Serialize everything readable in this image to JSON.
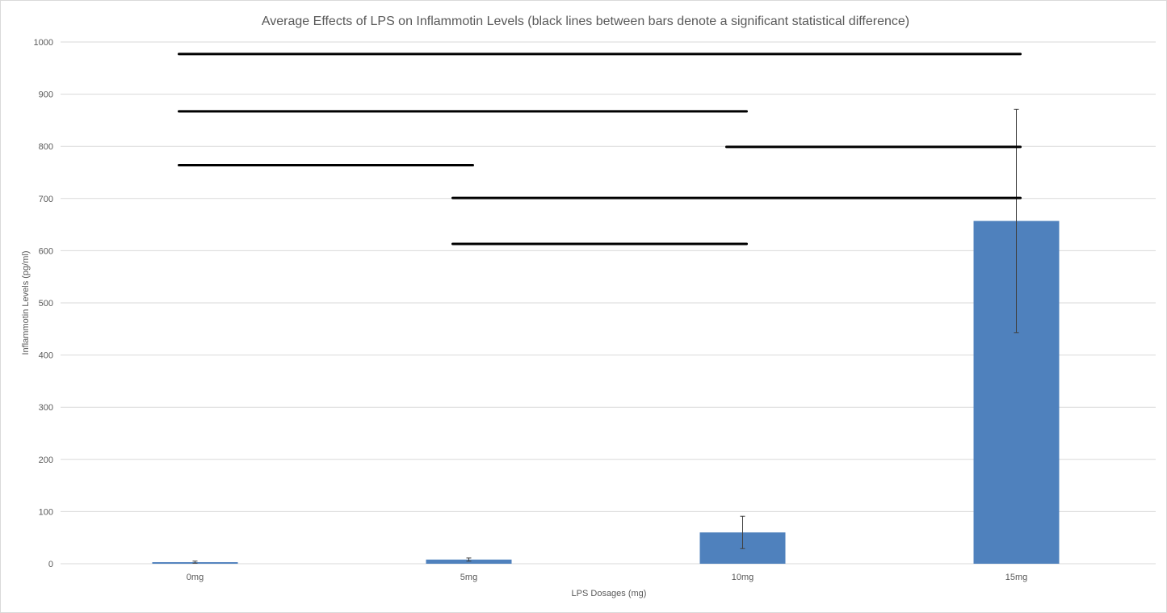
{
  "chart_data": {
    "type": "bar",
    "title": "Average Effects of LPS on Inflammotin Levels (black lines between bars denote a significant statistical difference)",
    "xlabel": "LPS Dosages (mg)",
    "ylabel": "Inflammotin Levels (pg/ml)",
    "categories": [
      "0mg",
      "5mg",
      "10mg",
      "15mg"
    ],
    "values": [
      3,
      8,
      60,
      657
    ],
    "error_bars": [
      {
        "low": 1,
        "high": 5
      },
      {
        "low": 5,
        "high": 11
      },
      {
        "low": 29,
        "high": 91
      },
      {
        "low": 443,
        "high": 871
      }
    ],
    "ylim": [
      0,
      1000
    ],
    "yticks": [
      0,
      100,
      200,
      300,
      400,
      500,
      600,
      700,
      800,
      900,
      1000
    ],
    "grid": true,
    "bar_color": "#4f81bd",
    "significance_lines": [
      {
        "from": "0mg",
        "to": "15mg",
        "y": 977
      },
      {
        "from": "0mg",
        "to": "10mg",
        "y": 867
      },
      {
        "from": "0mg",
        "to": "5mg",
        "y": 764
      },
      {
        "from": "10mg",
        "to": "15mg",
        "y": 799
      },
      {
        "from": "5mg",
        "to": "15mg",
        "y": 701
      },
      {
        "from": "5mg",
        "to": "10mg",
        "y": 613
      }
    ]
  }
}
